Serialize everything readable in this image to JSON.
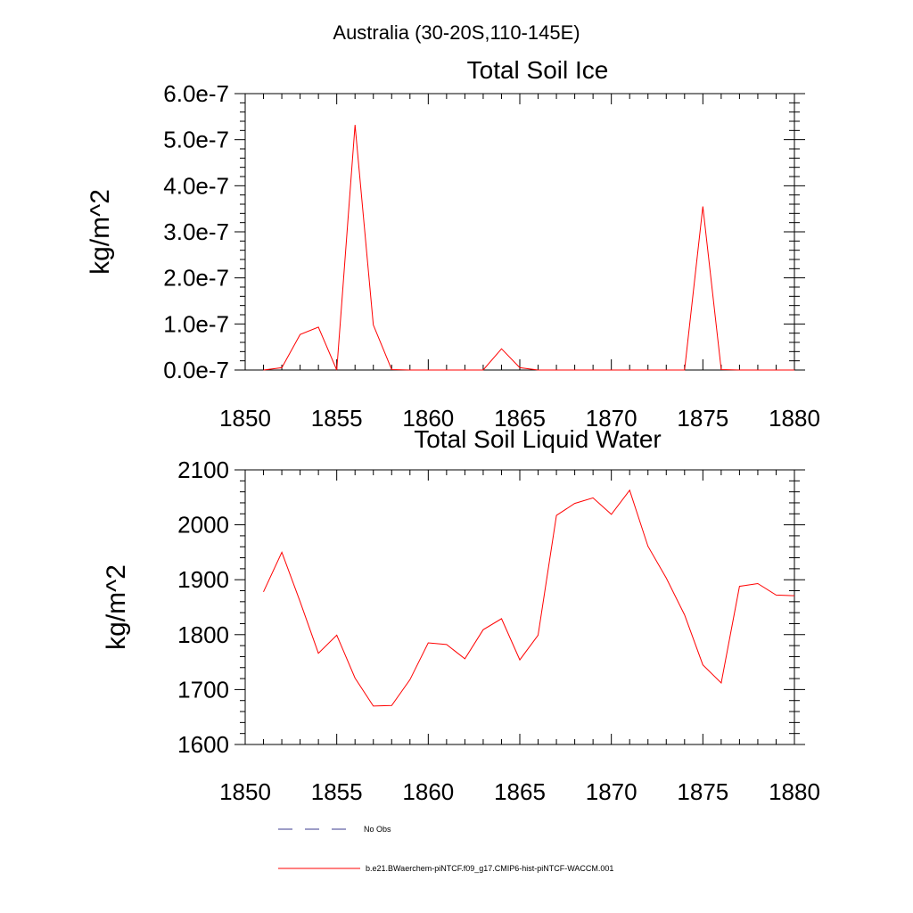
{
  "header": {
    "region_title": "Australia (30-20S,110-145E)"
  },
  "colors": {
    "model_series": "#ff0000",
    "obs_series": "#3b3b8f",
    "axis": "#000000"
  },
  "legend": {
    "items": [
      {
        "label": "No Obs",
        "style": "dashed",
        "color": "#3b3b8f"
      },
      {
        "label": "b.e21.BWaerchem-piNTCF.f09_g17.CMIP6-hist-piNTCF-WACCM.001",
        "style": "solid",
        "color": "#ff0000"
      }
    ]
  },
  "chart_data": [
    {
      "type": "line",
      "title": "Total Soil Ice",
      "xlabel": "",
      "ylabel": "kg/m^2",
      "xlim": [
        1850,
        1880
      ],
      "ylim": [
        0,
        6e-07
      ],
      "xticks": [
        1850,
        1855,
        1860,
        1865,
        1870,
        1875,
        1880
      ],
      "yticks": [
        0,
        1e-07,
        2e-07,
        3e-07,
        4e-07,
        5e-07,
        6e-07
      ],
      "ytick_labels": [
        "0.0e-7",
        "1.0e-7",
        "2.0e-7",
        "3.0e-7",
        "4.0e-7",
        "5.0e-7",
        "6.0e-7"
      ],
      "grid": false,
      "series": [
        {
          "name": "b.e21.BWaerchem-piNTCF.f09_g17.CMIP6-hist-piNTCF-WACCM.001",
          "color": "#ff0000",
          "x": [
            1851,
            1852,
            1853,
            1854,
            1855,
            1856,
            1857,
            1858,
            1859,
            1860,
            1861,
            1862,
            1863,
            1864,
            1865,
            1866,
            1867,
            1868,
            1869,
            1870,
            1871,
            1872,
            1873,
            1874,
            1875,
            1876,
            1877,
            1878,
            1879,
            1880
          ],
          "y": [
            0,
            5e-09,
            7.7e-08,
            9.3e-08,
            0,
            5.32e-07,
            9.8e-08,
            1e-09,
            0,
            0,
            0,
            0,
            0,
            4.6e-08,
            5e-09,
            0,
            0,
            0,
            0,
            0,
            0,
            0,
            0,
            0,
            3.55e-07,
            1e-09,
            0,
            0,
            0,
            0
          ]
        }
      ]
    },
    {
      "type": "line",
      "title": "Total Soil Liquid Water",
      "xlabel": "",
      "ylabel": "kg/m^2",
      "xlim": [
        1850,
        1880
      ],
      "ylim": [
        1600,
        2100
      ],
      "xticks": [
        1850,
        1855,
        1860,
        1865,
        1870,
        1875,
        1880
      ],
      "yticks": [
        1600,
        1700,
        1800,
        1900,
        2000,
        2100
      ],
      "ytick_labels": [
        "1600",
        "1700",
        "1800",
        "1900",
        "2000",
        "2100"
      ],
      "grid": false,
      "series": [
        {
          "name": "b.e21.BWaerchem-piNTCF.f09_g17.CMIP6-hist-piNTCF-WACCM.001",
          "color": "#ff0000",
          "x": [
            1851,
            1852,
            1853,
            1854,
            1855,
            1856,
            1857,
            1858,
            1859,
            1860,
            1861,
            1862,
            1863,
            1864,
            1865,
            1866,
            1867,
            1868,
            1869,
            1870,
            1871,
            1872,
            1873,
            1874,
            1875,
            1876,
            1877,
            1878,
            1879,
            1880
          ],
          "y": [
            1878,
            1950,
            1860,
            1766,
            1799,
            1721,
            1670,
            1671,
            1718,
            1785,
            1782,
            1756,
            1809,
            1829,
            1754,
            1799,
            2017,
            2039,
            2049,
            2019,
            2063,
            1961,
            1903,
            1836,
            1745,
            1712,
            1888,
            1893,
            1872,
            1871
          ]
        }
      ]
    }
  ]
}
